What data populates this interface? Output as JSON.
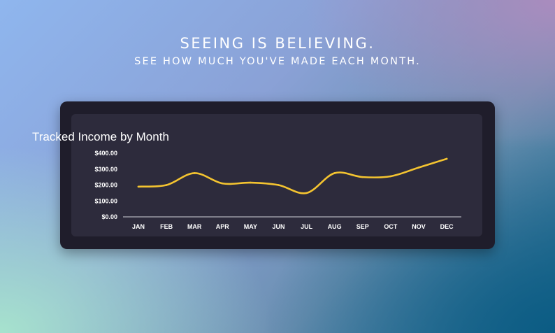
{
  "headline": {
    "title": "SEEING IS BELIEVING.",
    "subtitle": "SEE HOW MUCH YOU'VE MADE EACH MONTH."
  },
  "chart_data": {
    "type": "line",
    "title": "Tracked Income by Month",
    "xlabel": "",
    "ylabel": "",
    "categories": [
      "JAN",
      "FEB",
      "MAR",
      "APR",
      "MAY",
      "JUN",
      "JUL",
      "AUG",
      "SEP",
      "OCT",
      "NOV",
      "DEC"
    ],
    "values": [
      190,
      200,
      275,
      210,
      215,
      200,
      150,
      275,
      250,
      255,
      310,
      365
    ],
    "ylim": [
      0,
      400
    ],
    "yticks": [
      0,
      100,
      200,
      300,
      400
    ],
    "ytick_labels": [
      "$0.00",
      "$100.00",
      "$200.00",
      "$300.00",
      "$400.00"
    ],
    "grid": false,
    "line_color": "#f4c430"
  },
  "colors": {
    "outer_card": "#1f1d2b",
    "inner_card": "#2d2b3c",
    "axis": "#d0d0d8"
  }
}
